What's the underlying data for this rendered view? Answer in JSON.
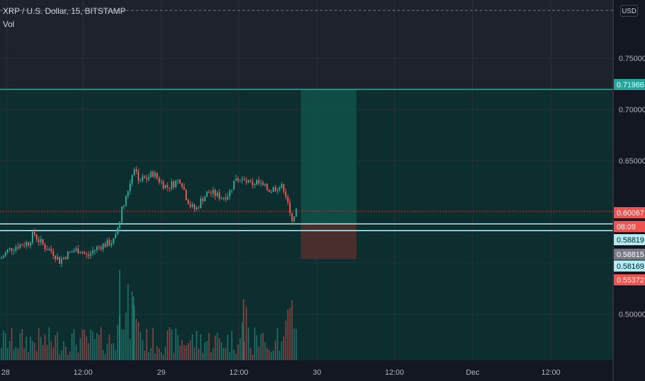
{
  "header": {
    "symbol_line": "XRP / U.S. Dollar, 15, BITSTAMP",
    "indicator_label": "Vol",
    "currency_button": "USD"
  },
  "colors": {
    "background": "#1e222d",
    "zone_fill": "#0d2e2e",
    "up_candle": "#26a69a",
    "down_candle": "#ef5350",
    "target_box": "#10514a",
    "stop_box": "#4a2e2e",
    "level_line": "#b2ebf2",
    "top_line": "#26a69a"
  },
  "chart_data": {
    "type": "candlestick",
    "title": "XRP / U.S. Dollar, 15, BITSTAMP",
    "indicator": "Vol",
    "y_axis": {
      "ticks": [
        "0.75000",
        "0.70000",
        "0.65000",
        "0.50000"
      ],
      "ylim": [
        0.455,
        0.807
      ],
      "position": "right"
    },
    "x_axis": {
      "ticks": [
        "28",
        "12:00",
        "29",
        "12:00",
        "30",
        "12:00",
        "Dec",
        "12:00"
      ]
    },
    "price_labels": [
      {
        "text": "0.71966",
        "value": 0.71966,
        "color": "#26a69a"
      },
      {
        "text": "0.60067",
        "value": 0.60067,
        "color": "#ef5350"
      },
      {
        "text": "08:09",
        "value": 0.5878,
        "color": "#ef5350"
      },
      {
        "text": "0.58819",
        "value": 0.58819,
        "color": "#b2ebf2"
      },
      {
        "text": "0.58815",
        "value": 0.58815,
        "color": "#787b86"
      },
      {
        "text": "0.58169",
        "value": 0.58169,
        "color": "#b2ebf2"
      },
      {
        "text": "0.55372",
        "value": 0.55372,
        "color": "#ef5350"
      }
    ],
    "horizontal_levels": [
      {
        "value": 0.71966,
        "style": "solid",
        "color": "#26a69a"
      },
      {
        "value": 0.58819,
        "style": "solid",
        "color": "#b2ebf2"
      },
      {
        "value": 0.58169,
        "style": "solid",
        "color": "#b2ebf2"
      },
      {
        "value": 0.60067,
        "style": "dotted",
        "color": "#ef5350"
      }
    ],
    "position_tool": {
      "entry": 0.58815,
      "target": 0.71966,
      "stop": 0.55372
    },
    "price_path": [
      [
        0,
        0.554
      ],
      [
        10,
        0.562
      ],
      [
        20,
        0.566
      ],
      [
        30,
        0.568
      ],
      [
        40,
        0.57
      ],
      [
        48,
        0.579
      ],
      [
        55,
        0.572
      ],
      [
        65,
        0.565
      ],
      [
        75,
        0.561
      ],
      [
        85,
        0.552
      ],
      [
        95,
        0.558
      ],
      [
        105,
        0.562
      ],
      [
        115,
        0.563
      ],
      [
        125,
        0.556
      ],
      [
        135,
        0.563
      ],
      [
        145,
        0.567
      ],
      [
        155,
        0.569
      ],
      [
        165,
        0.572
      ],
      [
        172,
        0.594
      ],
      [
        178,
        0.61
      ],
      [
        185,
        0.622
      ],
      [
        192,
        0.645
      ],
      [
        200,
        0.632
      ],
      [
        210,
        0.632
      ],
      [
        220,
        0.638
      ],
      [
        230,
        0.63
      ],
      [
        240,
        0.624
      ],
      [
        250,
        0.628
      ],
      [
        260,
        0.632
      ],
      [
        268,
        0.615
      ],
      [
        275,
        0.605
      ],
      [
        282,
        0.602
      ],
      [
        290,
        0.612
      ],
      [
        300,
        0.619
      ],
      [
        310,
        0.617
      ],
      [
        320,
        0.614
      ],
      [
        330,
        0.618
      ],
      [
        340,
        0.634
      ],
      [
        350,
        0.63
      ],
      [
        360,
        0.627
      ],
      [
        370,
        0.629
      ],
      [
        380,
        0.624
      ],
      [
        390,
        0.621
      ],
      [
        400,
        0.625
      ],
      [
        410,
        0.623
      ],
      [
        415,
        0.608
      ],
      [
        420,
        0.594
      ],
      [
        427,
        0.6
      ]
    ]
  }
}
